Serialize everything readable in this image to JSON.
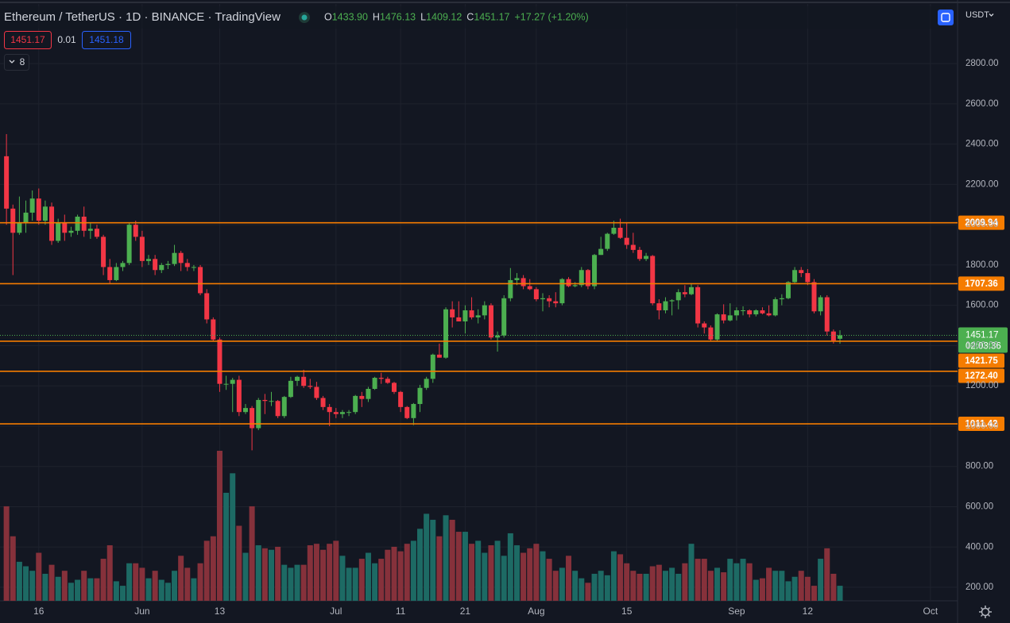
{
  "chart_data": {
    "type": "candlestick",
    "title": "Ethereum / TetherUS · 1D · BINANCE · TradingView",
    "legend_labels": [
      "O",
      "H",
      "L",
      "C"
    ],
    "legend_values": [
      {
        "value": 1433.9,
        "label": "1433.90"
      },
      {
        "value": 1476.13,
        "label": "1476.13"
      },
      {
        "value": 1409.12,
        "label": "1409.12"
      },
      {
        "value": 1451.17,
        "label": "1451.17"
      }
    ],
    "change": "+17.27 (+1.20%)",
    "bid": 1451.17,
    "spread": 0.01,
    "ask": 1451.18,
    "indicator_count": 8,
    "currency": "USDT",
    "up_color": "#4caf50",
    "down_color": "#f23645",
    "volume_up_color": "#1d6a64",
    "volume_down_color": "#86313b",
    "level_color": "#f57c00",
    "grid": true,
    "ylim": [
      133,
      3096
    ],
    "yticks": [
      {
        "value": 200,
        "label": "200.00"
      },
      {
        "value": 400,
        "label": "400.00"
      },
      {
        "value": 600,
        "label": "600.00"
      },
      {
        "value": 800,
        "label": "800.00"
      },
      {
        "value": 1000,
        "label": "1000.00"
      },
      {
        "value": 1200,
        "label": "1200.00"
      },
      {
        "value": 1400,
        "label": "1400.00"
      },
      {
        "value": 1600,
        "label": "1600.00"
      },
      {
        "value": 1800,
        "label": "1800.00"
      },
      {
        "value": 2000,
        "label": "2000.00"
      },
      {
        "value": 2200,
        "label": "2200.00"
      },
      {
        "value": 2400,
        "label": "2400.00"
      },
      {
        "value": 2600,
        "label": "2600.00"
      },
      {
        "value": 2800,
        "label": "2800.00"
      }
    ],
    "xlim": [
      -1,
      147.2
    ],
    "xticks": [
      {
        "value": 5,
        "label": "16"
      },
      {
        "value": 21,
        "label": "Jun"
      },
      {
        "value": 33,
        "label": "13"
      },
      {
        "value": 51,
        "label": "Jul"
      },
      {
        "value": 61,
        "label": "11"
      },
      {
        "value": 71,
        "label": "21"
      },
      {
        "value": 82,
        "label": "Aug"
      },
      {
        "value": 96,
        "label": "15"
      },
      {
        "value": 113,
        "label": "Sep"
      },
      {
        "value": 124,
        "label": "12"
      },
      {
        "value": 143,
        "label": "Oct"
      }
    ],
    "levels": [
      2009.94,
      1707.36,
      1421.75,
      {
        "value": 1272.4,
        "label": "1272.40"
      },
      1011.42
    ],
    "last_price": 1451.17,
    "countdown": "02:03:36",
    "ohlc": [
      [
        2340,
        2450,
        2000,
        2080
      ],
      [
        2080,
        2100,
        1750,
        1960
      ],
      [
        1960,
        2140,
        1950,
        2010
      ],
      [
        2010,
        2120,
        1960,
        2060
      ],
      [
        2060,
        2170,
        2020,
        2130
      ],
      [
        2130,
        2180,
        2000,
        2020
      ],
      [
        2020,
        2120,
        2000,
        2090
      ],
      [
        2090,
        2110,
        1900,
        1920
      ],
      [
        1920,
        2030,
        1910,
        2010
      ],
      [
        2010,
        2050,
        1920,
        1960
      ],
      [
        1960,
        1990,
        1940,
        1970
      ],
      [
        1970,
        2050,
        1950,
        2040
      ],
      [
        2040,
        2090,
        1940,
        1970
      ],
      [
        1970,
        2010,
        1930,
        1980
      ],
      [
        1980,
        2000,
        1930,
        1940
      ],
      [
        1940,
        1950,
        1750,
        1790
      ],
      [
        1790,
        1830,
        1710,
        1725
      ],
      [
        1725,
        1810,
        1720,
        1790
      ],
      [
        1790,
        1820,
        1770,
        1810
      ],
      [
        1810,
        2010,
        1800,
        2000
      ],
      [
        2000,
        2020,
        1920,
        1940
      ],
      [
        1940,
        1970,
        1790,
        1820
      ],
      [
        1820,
        1850,
        1800,
        1830
      ],
      [
        1830,
        1850,
        1750,
        1775
      ],
      [
        1775,
        1810,
        1760,
        1800
      ],
      [
        1800,
        1820,
        1780,
        1805
      ],
      [
        1805,
        1900,
        1795,
        1860
      ],
      [
        1860,
        1870,
        1770,
        1810
      ],
      [
        1810,
        1830,
        1770,
        1790
      ],
      [
        1790,
        1800,
        1770,
        1790
      ],
      [
        1790,
        1800,
        1650,
        1660
      ],
      [
        1660,
        1680,
        1510,
        1530
      ],
      [
        1530,
        1540,
        1420,
        1430
      ],
      [
        1430,
        1440,
        1170,
        1210
      ],
      [
        1210,
        1250,
        1180,
        1210
      ],
      [
        1210,
        1240,
        1070,
        1230
      ],
      [
        1230,
        1250,
        1050,
        1070
      ],
      [
        1070,
        1110,
        1060,
        1090
      ],
      [
        1090,
        1100,
        880,
        990
      ],
      [
        990,
        1140,
        980,
        1130
      ],
      [
        1130,
        1160,
        1060,
        1125
      ],
      [
        1125,
        1170,
        1100,
        1125
      ],
      [
        1125,
        1130,
        1040,
        1050
      ],
      [
        1050,
        1150,
        1040,
        1145
      ],
      [
        1145,
        1245,
        1140,
        1225
      ],
      [
        1225,
        1250,
        1200,
        1245
      ],
      [
        1245,
        1280,
        1190,
        1200
      ],
      [
        1200,
        1235,
        1185,
        1195
      ],
      [
        1195,
        1220,
        1130,
        1140
      ],
      [
        1140,
        1150,
        1080,
        1095
      ],
      [
        1095,
        1110,
        1000,
        1070
      ],
      [
        1070,
        1090,
        1040,
        1060
      ],
      [
        1060,
        1080,
        1040,
        1070
      ],
      [
        1070,
        1080,
        1050,
        1070
      ],
      [
        1070,
        1155,
        1060,
        1150
      ],
      [
        1150,
        1170,
        1095,
        1135
      ],
      [
        1135,
        1195,
        1120,
        1185
      ],
      [
        1185,
        1245,
        1180,
        1240
      ],
      [
        1240,
        1265,
        1210,
        1235
      ],
      [
        1235,
        1245,
        1210,
        1215
      ],
      [
        1215,
        1220,
        1160,
        1170
      ],
      [
        1170,
        1175,
        1070,
        1095
      ],
      [
        1095,
        1100,
        1035,
        1040
      ],
      [
        1040,
        1115,
        1005,
        1110
      ],
      [
        1110,
        1205,
        1070,
        1190
      ],
      [
        1190,
        1245,
        1180,
        1235
      ],
      [
        1235,
        1360,
        1215,
        1355
      ],
      [
        1355,
        1410,
        1340,
        1340
      ],
      [
        1340,
        1590,
        1335,
        1580
      ],
      [
        1580,
        1620,
        1490,
        1540
      ],
      [
        1540,
        1620,
        1520,
        1520
      ],
      [
        1520,
        1600,
        1460,
        1575
      ],
      [
        1575,
        1640,
        1530,
        1540
      ],
      [
        1540,
        1580,
        1510,
        1550
      ],
      [
        1550,
        1620,
        1530,
        1600
      ],
      [
        1600,
        1610,
        1430,
        1440
      ],
      [
        1440,
        1470,
        1370,
        1450
      ],
      [
        1450,
        1650,
        1440,
        1635
      ],
      [
        1635,
        1785,
        1620,
        1725
      ],
      [
        1725,
        1760,
        1700,
        1735
      ],
      [
        1735,
        1750,
        1680,
        1695
      ],
      [
        1695,
        1730,
        1675,
        1680
      ],
      [
        1680,
        1690,
        1620,
        1630
      ],
      [
        1630,
        1660,
        1570,
        1635
      ],
      [
        1635,
        1650,
        1590,
        1620
      ],
      [
        1620,
        1665,
        1590,
        1610
      ],
      [
        1610,
        1735,
        1600,
        1730
      ],
      [
        1730,
        1740,
        1690,
        1695
      ],
      [
        1695,
        1715,
        1690,
        1700
      ],
      [
        1700,
        1790,
        1690,
        1775
      ],
      [
        1775,
        1780,
        1680,
        1695
      ],
      [
        1695,
        1855,
        1680,
        1850
      ],
      [
        1850,
        1940,
        1850,
        1880
      ],
      [
        1880,
        1960,
        1870,
        1955
      ],
      [
        1955,
        2020,
        1950,
        1985
      ],
      [
        1985,
        2030,
        1930,
        1935
      ],
      [
        1935,
        2010,
        1880,
        1900
      ],
      [
        1900,
        1960,
        1860,
        1875
      ],
      [
        1875,
        1890,
        1820,
        1830
      ],
      [
        1830,
        1860,
        1820,
        1845
      ],
      [
        1845,
        1850,
        1600,
        1610
      ],
      [
        1610,
        1630,
        1530,
        1575
      ],
      [
        1575,
        1640,
        1560,
        1620
      ],
      [
        1620,
        1630,
        1550,
        1625
      ],
      [
        1625,
        1680,
        1580,
        1665
      ],
      [
        1665,
        1700,
        1640,
        1655
      ],
      [
        1655,
        1710,
        1650,
        1690
      ],
      [
        1690,
        1700,
        1490,
        1510
      ],
      [
        1510,
        1520,
        1460,
        1490
      ],
      [
        1490,
        1500,
        1420,
        1430
      ],
      [
        1430,
        1560,
        1420,
        1555
      ],
      [
        1555,
        1605,
        1510,
        1525
      ],
      [
        1525,
        1610,
        1520,
        1550
      ],
      [
        1550,
        1590,
        1525,
        1575
      ],
      [
        1575,
        1595,
        1550,
        1575
      ],
      [
        1575,
        1580,
        1540,
        1555
      ],
      [
        1555,
        1580,
        1545,
        1575
      ],
      [
        1575,
        1590,
        1555,
        1560
      ],
      [
        1560,
        1600,
        1545,
        1550
      ],
      [
        1550,
        1640,
        1545,
        1630
      ],
      [
        1630,
        1655,
        1600,
        1635
      ],
      [
        1635,
        1720,
        1630,
        1715
      ],
      [
        1715,
        1790,
        1710,
        1775
      ],
      [
        1775,
        1790,
        1740,
        1760
      ],
      [
        1760,
        1780,
        1700,
        1715
      ],
      [
        1715,
        1730,
        1560,
        1570
      ],
      [
        1570,
        1650,
        1550,
        1640
      ],
      [
        1640,
        1650,
        1450,
        1470
      ],
      [
        1470,
        1480,
        1410,
        1425
      ],
      [
        1433.9,
        1476.13,
        1409.12,
        1451.17
      ]
    ],
    "volume": [
      63,
      43,
      26,
      23,
      20,
      32,
      18,
      24,
      16,
      20,
      12,
      14,
      20,
      15,
      15,
      28,
      37,
      13,
      10,
      25,
      25,
      22,
      15,
      20,
      14,
      12,
      20,
      30,
      22,
      15,
      25,
      40,
      43,
      100,
      72,
      85,
      50,
      32,
      63,
      37,
      35,
      34,
      36,
      24,
      22,
      24,
      24,
      37,
      38,
      34,
      38,
      40,
      30,
      22,
      22,
      28,
      32,
      25,
      28,
      34,
      36,
      33,
      38,
      40,
      48,
      58,
      54,
      43,
      57,
      54,
      46,
      46,
      38,
      40,
      32,
      37,
      40,
      30,
      45,
      37,
      32,
      35,
      38,
      33,
      28,
      20,
      22,
      30,
      20,
      15,
      12,
      18,
      20,
      17,
      33,
      31,
      25,
      20,
      18,
      18,
      23,
      24,
      20,
      22,
      18,
      25,
      38,
      28,
      28,
      20,
      22,
      19,
      28,
      25,
      28,
      25,
      14,
      15,
      22,
      20,
      20,
      13,
      16,
      20,
      16,
      10,
      28,
      35,
      18,
      10
    ]
  }
}
